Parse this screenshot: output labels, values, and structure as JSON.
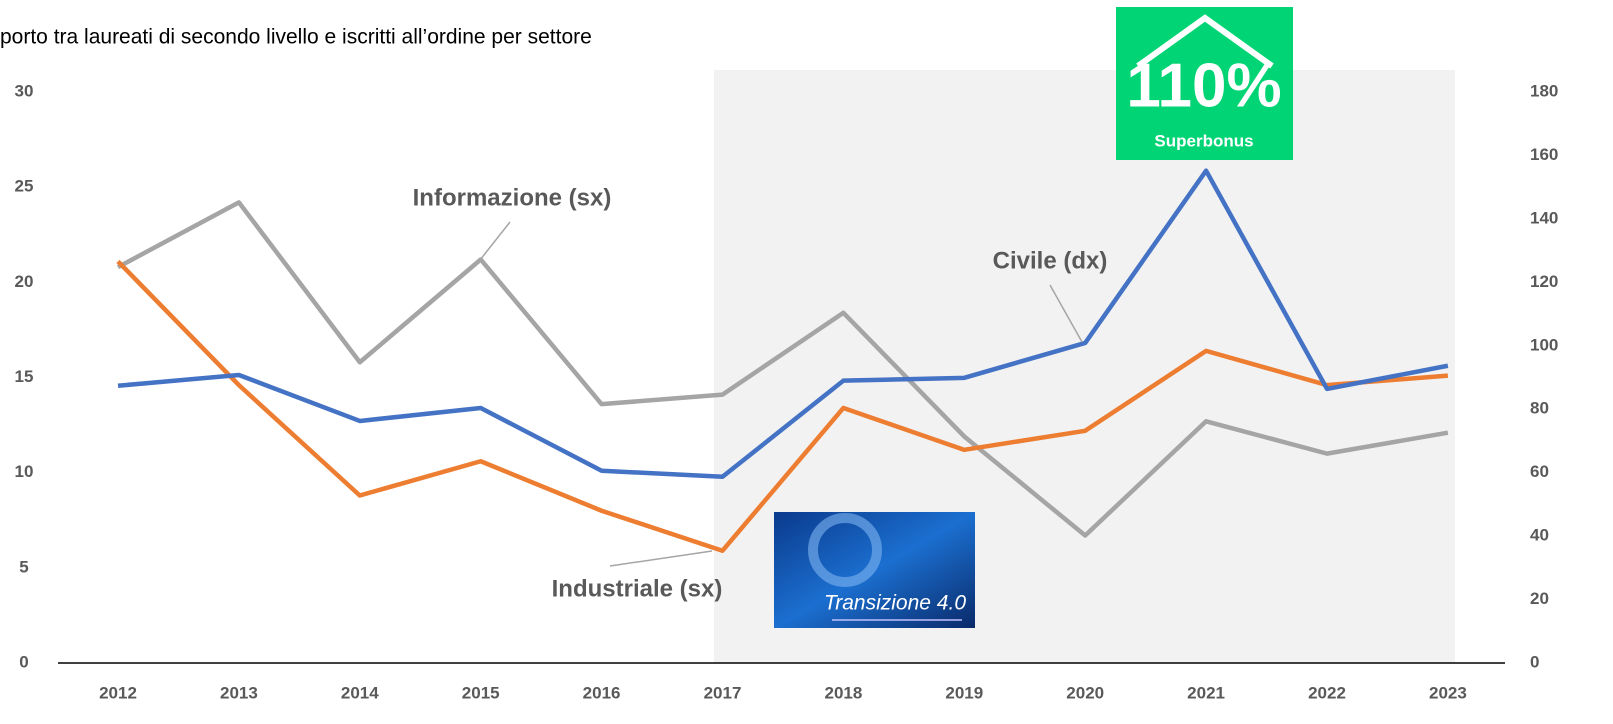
{
  "chart_data": {
    "type": "line",
    "title": "porto tra laureati di secondo livello e iscritti all’ordine per settore",
    "categories": [
      "2012",
      "2013",
      "2014",
      "2015",
      "2016",
      "2017",
      "2018",
      "2019",
      "2020",
      "2021",
      "2022",
      "2023"
    ],
    "series": [
      {
        "name": "Informazione (sx)",
        "color": "#a5a5a5",
        "values": [
          20.8,
          24.2,
          15.8,
          21.2,
          13.6,
          14.1,
          18.4,
          11.9,
          6.7,
          12.7,
          11.0,
          12.1
        ]
      },
      {
        "name": "Industriale (sx)",
        "color": "#ed7d31",
        "values": [
          21.1,
          14.6,
          8.8,
          10.6,
          8.0,
          5.9,
          13.4,
          11.2,
          12.2,
          16.4,
          14.6,
          15.1
        ]
      },
      {
        "name": "Civile (dx)",
        "color": "#4472c4",
        "axis": "y2",
        "values": [
          87.4,
          90.8,
          76.3,
          80.4,
          60.6,
          58.7,
          89.0,
          89.9,
          100.9,
          155.2,
          86.4,
          93.7
        ]
      }
    ],
    "ylim": [
      0,
      30
    ],
    "yticks": [
      0,
      5,
      10,
      15,
      20,
      25,
      30
    ],
    "y2lim": [
      0,
      180
    ],
    "y2ticks": [
      0,
      20,
      40,
      60,
      80,
      100,
      120,
      140,
      160,
      180
    ],
    "grid": false,
    "images": {
      "superbonus": {
        "main": "110%",
        "caption": "Superbonus"
      },
      "transizione": "Transizione 4.0"
    }
  }
}
